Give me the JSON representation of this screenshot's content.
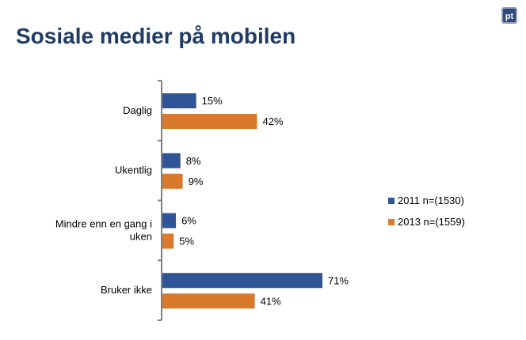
{
  "title": "Sosiale medier på mobilen",
  "logo_text": "pt",
  "chart_data": {
    "type": "bar",
    "orientation": "horizontal",
    "title": "Sosiale medier på mobilen",
    "categories": [
      "Daglig",
      "Ukentlig",
      "Mindre enn en gang i uken",
      "Bruker ikke"
    ],
    "series": [
      {
        "name": "2011 n=(1530)",
        "color": "#2f5597",
        "values": [
          15,
          8,
          6,
          71
        ]
      },
      {
        "name": "2013 n=(1559)",
        "color": "#d9792b",
        "values": [
          42,
          9,
          5,
          41
        ]
      }
    ],
    "value_format": "percent",
    "grid": false,
    "legend": "right"
  }
}
